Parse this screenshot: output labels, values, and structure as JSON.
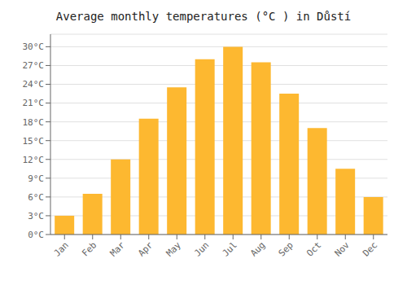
{
  "chart_data": {
    "type": "bar",
    "title": "Average monthly temperatures (°C ) in Důstí",
    "categories": [
      "Jan",
      "Feb",
      "Mar",
      "Apr",
      "May",
      "Jun",
      "Jul",
      "Aug",
      "Sep",
      "Oct",
      "Nov",
      "Dec"
    ],
    "values": [
      3,
      6.5,
      12,
      18.5,
      23.5,
      28,
      30,
      27.5,
      22.5,
      17,
      10.5,
      6
    ],
    "color": "#FDB830",
    "ylim": [
      0,
      32
    ],
    "yticks": [
      {
        "value": 0,
        "label": "0°C"
      },
      {
        "value": 3,
        "label": "3°C"
      },
      {
        "value": 6,
        "label": "6°C"
      },
      {
        "value": 9,
        "label": "9°C"
      },
      {
        "value": 12,
        "label": "12°C"
      },
      {
        "value": 15,
        "label": "15°C"
      },
      {
        "value": 18,
        "label": "18°C"
      },
      {
        "value": 21,
        "label": "21°C"
      },
      {
        "value": 24,
        "label": "24°C"
      },
      {
        "value": 27,
        "label": "27°C"
      },
      {
        "value": 30,
        "label": "30°C"
      }
    ],
    "grid": true
  }
}
